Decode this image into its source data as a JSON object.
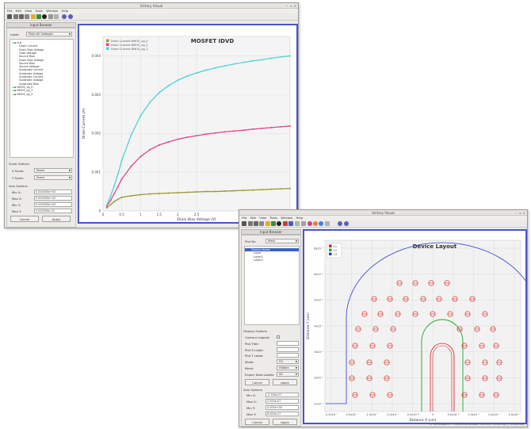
{
  "windowA": {
    "title": "Victory Visual",
    "menu": [
      "File",
      "Edit",
      "View",
      "Tools",
      "Window",
      "Help"
    ],
    "panel_title": "Input Browser",
    "label_field": "Label:",
    "label_value": "Plots All Voltages",
    "tree": [
      {
        "label": "out",
        "indent": 0
      },
      {
        "label": "Drain Current",
        "indent": 2
      },
      {
        "label": "Drain Bias Voltage",
        "indent": 2
      },
      {
        "label": "Gate Voltage",
        "indent": 2
      },
      {
        "label": "Source Bias",
        "indent": 2
      },
      {
        "label": "Drain Bias Voltage",
        "indent": 2
      },
      {
        "label": "Source Bias",
        "indent": 2
      },
      {
        "label": "Source Voltage",
        "indent": 2
      },
      {
        "label": "Substrate Current",
        "indent": 2
      },
      {
        "label": "Substrate Voltage",
        "indent": 2
      },
      {
        "label": "Substrate Current",
        "indent": 2
      },
      {
        "label": "Substrate Voltage",
        "indent": 2
      },
      {
        "label": "Substrate Bias",
        "indent": 2
      },
      {
        "label": "NMOS_vg_0",
        "indent": 0
      },
      {
        "label": "NMOS_vg_1",
        "indent": 0
      },
      {
        "label": "NMOS_vg_2",
        "indent": 0
      }
    ],
    "scale_options_title": "Scale Options",
    "x_scale_label": "X Scale:",
    "x_scale_value": "linear",
    "y_scale_label": "Y Scale:",
    "y_scale_value": "linear",
    "axis_options_title": "Axis Options",
    "axis_fields": [
      {
        "label": "Min X:",
        "value": "0.000000e+00"
      },
      {
        "label": "Max X:",
        "value": "5.000000e+00"
      },
      {
        "label": "Min Y:",
        "value": "0.000000e+00"
      },
      {
        "label": "Max Y:",
        "value": "5.000000e-03"
      }
    ],
    "buttons": {
      "cancel": "Cancel",
      "apply": "Apply"
    },
    "status": "X: 4.58598 Y: 0.000573234"
  },
  "windowB": {
    "title": "Victory Visual",
    "menu": [
      "File",
      "Edit",
      "View",
      "Tools",
      "Window",
      "Help"
    ],
    "panel_title": "Input Browser",
    "plot_label": "Plot By:",
    "plot_value": "Mesh",
    "tree": [
      {
        "label": "Device Nodes",
        "indent": 0,
        "selected": true
      },
      {
        "label": "Layer",
        "indent": 2
      },
      {
        "label": "Layer1",
        "indent": 2
      },
      {
        "label": "Layer2",
        "indent": 2
      }
    ],
    "display_options_title": "Display Options",
    "display_fields": [
      {
        "label": "Contour Legend:",
        "kind": "check",
        "value": ""
      },
      {
        "label": "Plot Title:",
        "kind": "field",
        "value": ""
      },
      {
        "label": "Plot X Label:",
        "kind": "field",
        "value": ""
      },
      {
        "label": "Plot Y Label:",
        "kind": "field",
        "value": ""
      },
      {
        "label": "Mode:",
        "kind": "combo",
        "value": "Fill"
      },
      {
        "label": "Mesh:",
        "kind": "combo",
        "value": "Hidden"
      },
      {
        "label": "Export Data Labels:",
        "kind": "combo",
        "value": "All"
      }
    ],
    "display_buttons": {
      "cancel": "Cancel",
      "apply": "Apply"
    },
    "axis_options_title": "Axis Options",
    "axis_fields": [
      {
        "label": "Min X:",
        "value": "-2.500e-07"
      },
      {
        "label": "Max X:",
        "value": "2.500e-07"
      },
      {
        "label": "Min Y:",
        "value": "0.000e+00"
      },
      {
        "label": "Max Y:",
        "value": "8.000e-07"
      }
    ],
    "buttons": {
      "cancel": "Cancel",
      "apply": "Apply"
    },
    "status": "X: -4.50568e-07 Y: 0.000573234  Zoom: 100%  (x: 1.000e-08, y: 1.000e-08)"
  },
  "colors": {
    "accent_frame": "#4b55c8",
    "series_olive": "#9a9a2c",
    "series_pink": "#e0448c",
    "series_cyan": "#4fd2d8",
    "outline_blue": "#2e3ad2",
    "outline_green": "#1faa2a",
    "outline_red": "#d81f1f"
  },
  "chart_data": [
    {
      "type": "line",
      "title": "MOSFET IDVD",
      "xlabel": "Drain Bias Voltage (V)",
      "ylabel": "Drain Current (A)",
      "xlim": [
        0,
        5
      ],
      "ylim": [
        0,
        0.0045
      ],
      "x_ticks": [
        "0",
        "0.5",
        "1",
        "1.5",
        "2",
        "2.5"
      ],
      "y_ticks": [
        "0",
        "0.001",
        "0.002",
        "0.003",
        "0.004"
      ],
      "x": [
        0.1,
        0.2,
        0.3,
        0.4,
        0.5,
        0.75,
        1.0,
        1.25,
        1.5,
        1.75,
        2.0,
        2.25,
        2.5,
        2.75,
        3.0,
        3.25,
        3.5,
        3.75,
        4.0,
        4.25,
        4.5,
        4.75,
        5.0
      ],
      "series": [
        {
          "name": "Drain Current NMOS_vg_0",
          "color": "#9a9a2c",
          "values": [
            8e-05,
            0.00016,
            0.00024,
            0.0003,
            0.00035,
            0.00039,
            0.00042,
            0.00044,
            0.00045,
            0.00046,
            0.00047,
            0.00048,
            0.00049,
            0.0005,
            0.0005,
            0.00051,
            0.00052,
            0.00053,
            0.00054,
            0.00055,
            0.00056,
            0.00057,
            0.00058
          ]
        },
        {
          "name": "Drain Current NMOS_vg_1",
          "color": "#e0448c",
          "values": [
            0.00012,
            0.00027,
            0.00045,
            0.00063,
            0.00082,
            0.00115,
            0.0014,
            0.00158,
            0.0017,
            0.00178,
            0.00185,
            0.0019,
            0.00194,
            0.00198,
            0.00201,
            0.00204,
            0.00206,
            0.00208,
            0.00211,
            0.00213,
            0.00215,
            0.00217,
            0.00219
          ]
        },
        {
          "name": "Drain Current NMOS_vg_2",
          "color": "#4fd2d8",
          "values": [
            0.00015,
            0.00038,
            0.00065,
            0.00095,
            0.0013,
            0.00195,
            0.00245,
            0.0028,
            0.00305,
            0.00323,
            0.00337,
            0.00348,
            0.00356,
            0.00363,
            0.00369,
            0.00374,
            0.00379,
            0.00383,
            0.00387,
            0.0039,
            0.00394,
            0.00397,
            0.004
          ]
        }
      ],
      "legend": "top-left",
      "grid": true
    },
    {
      "type": "scatter",
      "title": "Device Layout",
      "xlabel": "Distance X (um)",
      "ylabel": "Distance Y (um)",
      "x_ticks": [
        "-2.5x10⁻⁷",
        "-2.0x10⁻⁷",
        "-1.5x10⁻⁷",
        "-1.0x10⁻⁷",
        "-5.0x10⁻⁸",
        "0",
        "5.0x10⁻⁸",
        "1.0x10⁻⁷",
        "1.5x10⁻⁷",
        "2.0x10⁻⁷"
      ],
      "y_ticks": [
        "8x10⁻⁷",
        "6x10⁻⁷",
        "5x10⁻⁷",
        "4x10⁻⁷",
        "3x10⁻⁷",
        "2x10⁻⁷",
        "1x10⁻⁷"
      ],
      "legend_entries": [
        {
          "name": "L1",
          "color": "#d81f1f"
        },
        {
          "name": "L2",
          "color": "#1faa2a"
        },
        {
          "name": "L3",
          "color": "#2e3ad2"
        }
      ],
      "legend": "top-left",
      "grid": true
    }
  ]
}
